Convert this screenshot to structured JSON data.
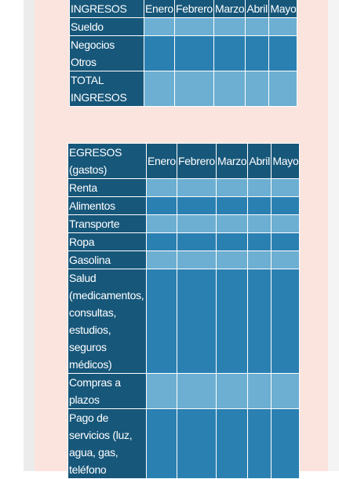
{
  "ingresos": {
    "header": [
      "INGRESOS",
      "Enero",
      "Febrero",
      "Marzo",
      "Abril",
      "Mayo"
    ],
    "rows": [
      "Sueldo",
      "Negocios Otros",
      "TOTAL INGRESOS"
    ]
  },
  "egresos": {
    "header": [
      "EGRESOS (gastos)",
      "Enero",
      "Febrero",
      "Marzo",
      "Abril",
      "Mayo"
    ],
    "rows": [
      "Renta",
      "Alimentos",
      "Transporte",
      "Ropa",
      "Gasolina",
      "Salud (medicamentos, consultas, estudios, seguros médicos)",
      "Compras a plazos",
      "Pago de servicios (luz, agua, gas, teléfono"
    ]
  }
}
